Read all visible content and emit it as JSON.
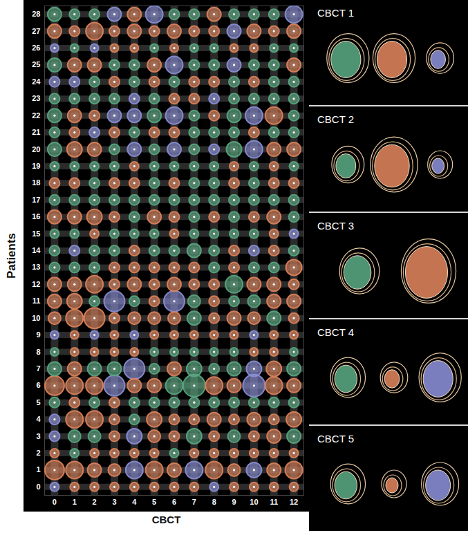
{
  "chart_data": {
    "type": "bubble_grid",
    "xlabel": "CBCT",
    "ylabel": "Patients",
    "x": [
      0,
      1,
      2,
      3,
      4,
      5,
      6,
      7,
      8,
      9,
      10,
      11,
      12
    ],
    "xlim": [
      -0.5,
      12.5
    ],
    "ylim": [
      -0.5,
      28.5
    ],
    "xticks": [
      0,
      1,
      2,
      3,
      4,
      5,
      6,
      7,
      8,
      9,
      10,
      11,
      12
    ],
    "yticks": [
      0,
      1,
      2,
      3,
      4,
      5,
      6,
      7,
      8,
      9,
      10,
      11,
      12,
      13,
      14,
      15,
      16,
      17,
      18,
      19,
      20,
      21,
      22,
      23,
      24,
      25,
      26,
      27,
      28
    ],
    "grid": true,
    "rows": [
      {
        "patient": 0,
        "colors": [
          "#8c90d8",
          "#e0845c",
          "#e0845c",
          "#e0845c",
          "#e0845c",
          "#e0845c",
          "#e0845c",
          "#e0845c",
          "#8c90d8",
          "#e0845c",
          "#e0845c",
          "#e0845c",
          "#e0845c"
        ],
        "sizes": [
          1.3,
          1.3,
          1.3,
          1.3,
          1.3,
          1.3,
          1.3,
          1.3,
          1.3,
          1.3,
          1.3,
          1.3,
          1.3
        ]
      },
      {
        "patient": 1,
        "colors": [
          "#e0845c",
          "#e0845c",
          "#e0845c",
          "#e0845c",
          "#8c90d8",
          "#e0845c",
          "#e0845c",
          "#8c90d8",
          "#e0845c",
          "#e0845c",
          "#8c90d8",
          "#e0845c",
          "#e0845c"
        ],
        "sizes": [
          2.8,
          2.5,
          2,
          1.8,
          2.5,
          2.5,
          2,
          2.5,
          2.5,
          1.8,
          2.2,
          2,
          2.5
        ]
      },
      {
        "patient": 2,
        "colors": [
          "#e0845c",
          "#5aa882",
          "#e0845c",
          "#e0845c",
          "#e0845c",
          "#e0845c",
          "#5aa882",
          "#e0845c",
          "#e0845c",
          "#e0845c",
          "#e0845c",
          "#e0845c",
          "#e0845c"
        ],
        "sizes": [
          1.3,
          1.3,
          1.3,
          1.3,
          1.3,
          1.3,
          1.3,
          1.3,
          1.3,
          1.3,
          1.3,
          1.3,
          1.3
        ]
      },
      {
        "patient": 3,
        "colors": [
          "#8c90d8",
          "#5aa882",
          "#5aa882",
          "#e0845c",
          "#8c90d8",
          "#e0845c",
          "#e0845c",
          "#5aa882",
          "#e0845c",
          "#5aa882",
          "#e0845c",
          "#e0845c",
          "#5aa882"
        ],
        "sizes": [
          1.5,
          1.8,
          1.8,
          1.5,
          2.2,
          1.8,
          1.5,
          2.2,
          1.5,
          1.8,
          1.5,
          2,
          2
        ]
      },
      {
        "patient": 4,
        "colors": [
          "#8c90d8",
          "#e0845c",
          "#e0845c",
          "#e0845c",
          "#5aa882",
          "#e0845c",
          "#e0845c",
          "#e0845c",
          "#e0845c",
          "#e0845c",
          "#e0845c",
          "#e0845c",
          "#e0845c"
        ],
        "sizes": [
          1.5,
          2.5,
          2.5,
          1.5,
          1.5,
          2.2,
          1.5,
          1.5,
          2,
          1.5,
          2,
          1.5,
          2.2
        ]
      },
      {
        "patient": 5,
        "colors": [
          "#5aa882",
          "#e0845c",
          "#5aa882",
          "#e0845c",
          "#5aa882",
          "#5aa882",
          "#5aa882",
          "#5aa882",
          "#5aa882",
          "#5aa882",
          "#5aa882",
          "#5aa882",
          "#5aa882"
        ],
        "sizes": [
          1.5,
          1.5,
          1.5,
          1.5,
          1.5,
          1.5,
          1.5,
          1.5,
          1.5,
          1.5,
          1.5,
          1.5,
          1.5
        ]
      },
      {
        "patient": 6,
        "colors": [
          "#e0845c",
          "#e0845c",
          "#e0845c",
          "#8c90d8",
          "#e0845c",
          "#e0845c",
          "#5aa882",
          "#5aa882",
          "#e0845c",
          "#e0845c",
          "#8c90d8",
          "#e0845c",
          "#e0845c"
        ],
        "sizes": [
          2.8,
          2.5,
          2.5,
          3,
          2,
          2,
          2.5,
          3.2,
          2.5,
          2,
          3.2,
          2.5,
          2
        ]
      },
      {
        "patient": 7,
        "colors": [
          "#5aa882",
          "#e0845c",
          "#5aa882",
          "#5aa882",
          "#8c90d8",
          "#5aa882",
          "#e0845c",
          "#5aa882",
          "#5aa882",
          "#5aa882",
          "#8c90d8",
          "#e0845c",
          "#5aa882"
        ],
        "sizes": [
          2,
          2,
          2,
          2,
          3,
          1.5,
          2,
          2.2,
          1.5,
          2,
          2.2,
          2.2,
          2
        ]
      },
      {
        "patient": 8,
        "colors": [
          "#5aa882",
          "#e0845c",
          "#e0845c",
          "#e0845c",
          "#e0845c",
          "#5aa882",
          "#5aa882",
          "#5aa882",
          "#5aa882",
          "#5aa882",
          "#e0845c",
          "#e0845c",
          "#5aa882"
        ],
        "sizes": [
          1.2,
          1.2,
          1.2,
          1.2,
          1.2,
          1.2,
          1.2,
          1.2,
          1.2,
          1.2,
          1.2,
          1.2,
          1.2
        ]
      },
      {
        "patient": 9,
        "colors": [
          "#8c90d8",
          "#e0845c",
          "#8c90d8",
          "#e0845c",
          "#8c90d8",
          "#e0845c",
          "#e0845c",
          "#e0845c",
          "#e0845c",
          "#e0845c",
          "#8c90d8",
          "#e0845c",
          "#e0845c"
        ],
        "sizes": [
          1.2,
          1.2,
          1.2,
          1.2,
          1.2,
          1.2,
          1.2,
          1.2,
          1.2,
          1.2,
          1.2,
          1.2,
          1.2
        ]
      },
      {
        "patient": 10,
        "colors": [
          "#e0845c",
          "#e0845c",
          "#e0845c",
          "#e0845c",
          "#e0845c",
          "#e0845c",
          "#e0845c",
          "#5aa882",
          "#e0845c",
          "#e0845c",
          "#e0845c",
          "#5aa882",
          "#e0845c"
        ],
        "sizes": [
          1.8,
          2.5,
          3,
          1.5,
          1.8,
          1.8,
          1.8,
          2,
          1.5,
          2,
          1.8,
          2,
          1.5
        ]
      },
      {
        "patient": 11,
        "colors": [
          "#e0845c",
          "#e0845c",
          "#5aa882",
          "#8c90d8",
          "#5aa882",
          "#e0845c",
          "#8c90d8",
          "#5aa882",
          "#e0845c",
          "#5aa882",
          "#5aa882",
          "#e0845c",
          "#e0845c"
        ],
        "sizes": [
          2,
          2.2,
          1.5,
          3,
          1.5,
          1.5,
          3,
          1.8,
          1.5,
          1.5,
          1.8,
          2,
          2
        ]
      },
      {
        "patient": 12,
        "colors": [
          "#e0845c",
          "#e0845c",
          "#e0845c",
          "#e0845c",
          "#e0845c",
          "#e0845c",
          "#e0845c",
          "#e0845c",
          "#e0845c",
          "#5aa882",
          "#e0845c",
          "#e0845c",
          "#e0845c"
        ],
        "sizes": [
          2,
          2,
          2.5,
          1.5,
          2,
          1.5,
          2,
          1.5,
          1.5,
          2.5,
          2,
          2,
          1.5
        ]
      },
      {
        "patient": 13,
        "colors": [
          "#5aa882",
          "#5aa882",
          "#5aa882",
          "#e0845c",
          "#e0845c",
          "#e0845c",
          "#e0845c",
          "#e0845c",
          "#5aa882",
          "#e0845c",
          "#5aa882",
          "#5aa882",
          "#e0845c"
        ],
        "sizes": [
          1.5,
          1.5,
          1.5,
          1.5,
          1.5,
          1.5,
          1.5,
          1.5,
          1.5,
          1.5,
          1.5,
          1.5,
          2.3
        ]
      },
      {
        "patient": 14,
        "colors": [
          "#5aa882",
          "#8c90d8",
          "#5aa882",
          "#5aa882",
          "#e0845c",
          "#5aa882",
          "#5aa882",
          "#5aa882",
          "#5aa882",
          "#e0845c",
          "#8c90d8",
          "#e0845c",
          "#5aa882"
        ],
        "sizes": [
          1.5,
          1.5,
          1.5,
          1.5,
          1.5,
          1.5,
          1.5,
          2,
          1.5,
          1.5,
          1.5,
          1.5,
          1.5
        ]
      },
      {
        "patient": 15,
        "colors": [
          "#5aa882",
          "#5aa882",
          "#e0845c",
          "#5aa882",
          "#5aa882",
          "#5aa882",
          "#e0845c",
          "#5aa882",
          "#5aa882",
          "#5aa882",
          "#5aa882",
          "#e0845c",
          "#8c90d8"
        ],
        "sizes": [
          1.3,
          1.3,
          1.3,
          1.3,
          1.3,
          1.3,
          1.3,
          1.3,
          1.3,
          1.3,
          1.3,
          1.3,
          1.3
        ]
      },
      {
        "patient": 16,
        "colors": [
          "#e0845c",
          "#e0845c",
          "#e0845c",
          "#e0845c",
          "#5aa882",
          "#e0845c",
          "#e0845c",
          "#5aa882",
          "#e0845c",
          "#5aa882",
          "#e0845c",
          "#e0845c",
          "#5aa882"
        ],
        "sizes": [
          2,
          2,
          2.2,
          1.5,
          1.5,
          2,
          1.5,
          1.5,
          1.5,
          1.5,
          1.5,
          2,
          1.5
        ]
      },
      {
        "patient": 17,
        "colors": [
          "#5aa882",
          "#5aa882",
          "#5aa882",
          "#5aa882",
          "#5aa882",
          "#5aa882",
          "#5aa882",
          "#5aa882",
          "#5aa882",
          "#5aa882",
          "#5aa882",
          "#5aa882",
          "#5aa882"
        ],
        "sizes": [
          1.5,
          1.5,
          1.5,
          1.5,
          1.5,
          1.5,
          1.5,
          1.5,
          1.5,
          1.5,
          1.5,
          1.5,
          1.5
        ]
      },
      {
        "patient": 18,
        "colors": [
          "#e0845c",
          "#e0845c",
          "#5aa882",
          "#e0845c",
          "#e0845c",
          "#5aa882",
          "#e0845c",
          "#5aa882",
          "#5aa882",
          "#e0845c",
          "#5aa882",
          "#e0845c",
          "#e0845c"
        ],
        "sizes": [
          1.5,
          1.5,
          1.5,
          1.5,
          1.5,
          1.5,
          1.5,
          1.5,
          1.5,
          1.5,
          1.5,
          1.5,
          1.5
        ]
      },
      {
        "patient": 19,
        "colors": [
          "#5aa882",
          "#5aa882",
          "#5aa882",
          "#5aa882",
          "#e0845c",
          "#5aa882",
          "#5aa882",
          "#5aa882",
          "#5aa882",
          "#e0845c",
          "#5aa882",
          "#e0845c",
          "#5aa882"
        ],
        "sizes": [
          1.3,
          1.3,
          1.3,
          1.3,
          1.3,
          1.3,
          1.3,
          1.3,
          1.3,
          1.3,
          1.3,
          1.3,
          1.3
        ]
      },
      {
        "patient": 20,
        "colors": [
          "#5aa882",
          "#e0845c",
          "#e0845c",
          "#5aa882",
          "#8c90d8",
          "#5aa882",
          "#8c90d8",
          "#5aa882",
          "#8c90d8",
          "#5aa882",
          "#8c90d8",
          "#e0845c",
          "#e0845c"
        ],
        "sizes": [
          2,
          2.2,
          2,
          1.5,
          2,
          1.5,
          2,
          1.5,
          1.5,
          2.2,
          2.5,
          2,
          2
        ]
      },
      {
        "patient": 21,
        "colors": [
          "#5aa882",
          "#e0845c",
          "#8c90d8",
          "#e0845c",
          "#5aa882",
          "#e0845c",
          "#e0845c",
          "#5aa882",
          "#5aa882",
          "#5aa882",
          "#e0845c",
          "#5aa882",
          "#5aa882"
        ],
        "sizes": [
          1.5,
          1.5,
          1.5,
          1.5,
          1.5,
          1.5,
          1.5,
          1.5,
          1.5,
          1.5,
          1.5,
          1.5,
          1.5
        ]
      },
      {
        "patient": 22,
        "colors": [
          "#5aa882",
          "#e0845c",
          "#e0845c",
          "#8c90d8",
          "#8c90d8",
          "#5aa882",
          "#8c90d8",
          "#5aa882",
          "#e0845c",
          "#5aa882",
          "#8c90d8",
          "#e0845c",
          "#5aa882"
        ],
        "sizes": [
          2,
          2,
          1.5,
          2,
          2,
          2,
          2.5,
          1.5,
          1.5,
          2,
          2.5,
          2.5,
          1.5
        ]
      },
      {
        "patient": 23,
        "colors": [
          "#5aa882",
          "#5aa882",
          "#5aa882",
          "#5aa882",
          "#8c90d8",
          "#5aa882",
          "#e0845c",
          "#e0845c",
          "#8c90d8",
          "#5aa882",
          "#5aa882",
          "#5aa882",
          "#5aa882"
        ],
        "sizes": [
          1.5,
          1.5,
          1.5,
          1.5,
          1.5,
          1.5,
          1.5,
          1.5,
          1.5,
          1.5,
          1.5,
          1.5,
          1.5
        ]
      },
      {
        "patient": 24,
        "colors": [
          "#8c90d8",
          "#8c90d8",
          "#5aa882",
          "#e0845c",
          "#5aa882",
          "#e0845c",
          "#5aa882",
          "#e0845c",
          "#e0845c",
          "#5aa882",
          "#e0845c",
          "#5aa882",
          "#5aa882"
        ],
        "sizes": [
          1.5,
          1.5,
          1.5,
          1.5,
          1.5,
          1.5,
          1.5,
          1.5,
          1.5,
          1.5,
          1.5,
          1.5,
          1.5
        ]
      },
      {
        "patient": 25,
        "colors": [
          "#5aa882",
          "#e0845c",
          "#e0845c",
          "#5aa882",
          "#5aa882",
          "#e0845c",
          "#8c90d8",
          "#5aa882",
          "#5aa882",
          "#8c90d8",
          "#5aa882",
          "#5aa882",
          "#e0845c"
        ],
        "sizes": [
          2,
          2,
          2,
          1.5,
          1.5,
          2,
          2.5,
          1.5,
          1.5,
          2,
          1.5,
          1.5,
          2
        ]
      },
      {
        "patient": 26,
        "colors": [
          "#8c90d8",
          "#5aa882",
          "#8c90d8",
          "#e0845c",
          "#e0845c",
          "#5aa882",
          "#e0845c",
          "#5aa882",
          "#5aa882",
          "#e0845c",
          "#e0845c",
          "#5aa882",
          "#5aa882"
        ],
        "sizes": [
          1.2,
          1.2,
          1.2,
          1.2,
          1.2,
          1.2,
          1.2,
          1.2,
          1.2,
          1.2,
          1.2,
          1.2,
          1.2
        ]
      },
      {
        "patient": 27,
        "colors": [
          "#e0845c",
          "#e0845c",
          "#e0845c",
          "#e0845c",
          "#e0845c",
          "#e0845c",
          "#e0845c",
          "#e0845c",
          "#e0845c",
          "#8c90d8",
          "#e0845c",
          "#e0845c",
          "#e0845c"
        ],
        "sizes": [
          2,
          1.5,
          2.5,
          1.5,
          2,
          1.5,
          2,
          1.5,
          1.5,
          2,
          2,
          1.5,
          2
        ]
      },
      {
        "patient": 28,
        "colors": [
          "#5aa882",
          "#5aa882",
          "#5aa882",
          "#8c90d8",
          "#e0845c",
          "#8c90d8",
          "#5aa882",
          "#5aa882",
          "#e0845c",
          "#5aa882",
          "#5aa882",
          "#5aa882",
          "#8c90d8"
        ],
        "sizes": [
          2,
          1.5,
          1.5,
          2,
          2,
          2.5,
          1.5,
          1.5,
          2,
          1.5,
          1.5,
          1.5,
          2.5
        ]
      }
    ]
  },
  "panels": [
    {
      "label": "CBCT 1",
      "structures": [
        {
          "color": "#5aa882",
          "size": 1.2
        },
        {
          "color": "#e0845c",
          "size": 1.2
        },
        {
          "color": "#8c90d8",
          "size": 0.6
        }
      ]
    },
    {
      "label": "CBCT 2",
      "structures": [
        {
          "color": "#5aa882",
          "size": 0.8
        },
        {
          "color": "#e0845c",
          "size": 1.4
        },
        {
          "color": "#8c90d8",
          "size": 0.5
        }
      ]
    },
    {
      "label": "CBCT 3",
      "structures": [
        {
          "color": "#5aa882",
          "size": 1.1
        },
        {
          "color": "#e0845c",
          "size": 1.7
        }
      ]
    },
    {
      "label": "CBCT 4",
      "structures": [
        {
          "color": "#5aa882",
          "size": 0.9
        },
        {
          "color": "#e0845c",
          "size": 0.6
        },
        {
          "color": "#8c90d8",
          "size": 1.2
        }
      ]
    },
    {
      "label": "CBCT 5",
      "structures": [
        {
          "color": "#5aa882",
          "size": 0.9
        },
        {
          "color": "#e0845c",
          "size": 0.5
        },
        {
          "color": "#8c90d8",
          "size": 1.0
        }
      ]
    }
  ]
}
